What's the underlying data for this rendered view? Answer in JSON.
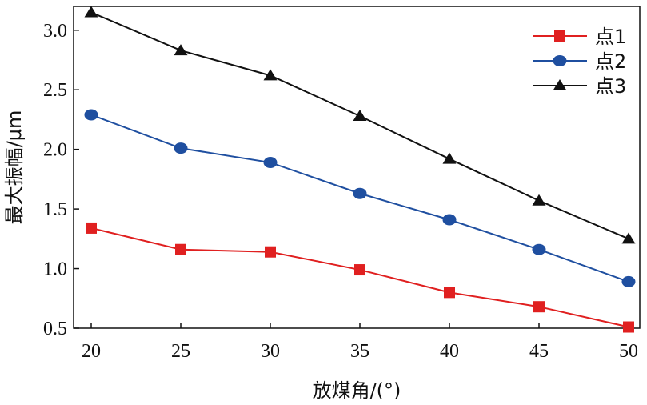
{
  "chart_data": {
    "type": "line",
    "xlabel": "放煤角/(°)",
    "ylabel": "最大振幅/μm",
    "x": [
      20,
      25,
      30,
      35,
      40,
      45,
      50
    ],
    "xlim": [
      20,
      50
    ],
    "ylim": [
      0.5,
      3.2
    ],
    "x_ticks": [
      20,
      25,
      30,
      35,
      40,
      45,
      50
    ],
    "y_ticks": [
      0.5,
      1.0,
      1.5,
      2.0,
      2.5,
      3.0
    ],
    "x_tick_labels": [
      "20",
      "25",
      "30",
      "35",
      "40",
      "45",
      "50"
    ],
    "y_tick_labels": [
      "0.5",
      "1.0",
      "1.5",
      "2.0",
      "2.5",
      "3.0"
    ],
    "grid": false,
    "legend_position": "top-right",
    "series": [
      {
        "name": "点1",
        "color": "#e02020",
        "marker": "square",
        "values": [
          1.34,
          1.16,
          1.14,
          0.99,
          0.8,
          0.68,
          0.51
        ]
      },
      {
        "name": "点2",
        "color": "#1f4fa0",
        "marker": "circle",
        "values": [
          2.29,
          2.01,
          1.89,
          1.63,
          1.41,
          1.16,
          0.89
        ]
      },
      {
        "name": "点3",
        "color": "#111111",
        "marker": "triangle",
        "values": [
          3.15,
          2.83,
          2.62,
          2.28,
          1.92,
          1.57,
          1.25
        ]
      }
    ]
  }
}
